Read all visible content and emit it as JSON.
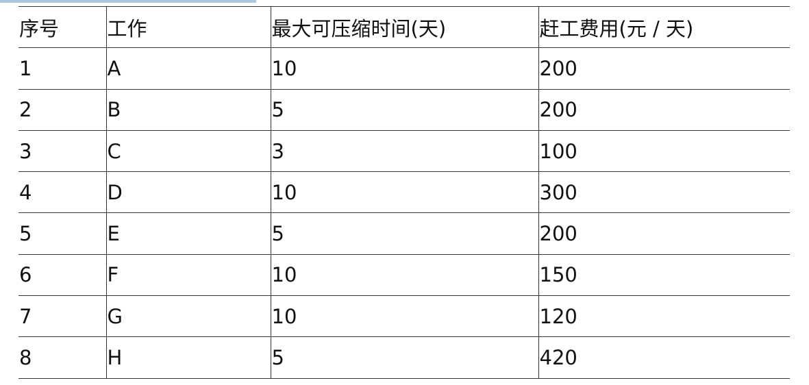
{
  "table": {
    "headers": [
      "序号",
      "工作",
      "最大可压缩时间(天)",
      "赶工费用(元 / 天)"
    ],
    "rows": [
      [
        "1",
        "A",
        "10",
        "200"
      ],
      [
        "2",
        "B",
        "5",
        "200"
      ],
      [
        "3",
        "C",
        "3",
        "100"
      ],
      [
        "4",
        "D",
        "10",
        "300"
      ],
      [
        "5",
        "E",
        "5",
        "200"
      ],
      [
        "6",
        "F",
        "10",
        "150"
      ],
      [
        "7",
        "G",
        "10",
        "120"
      ],
      [
        "8",
        "H",
        "5",
        "420"
      ]
    ]
  },
  "colors": {
    "top_bar": "#a9c8de",
    "border": "#333333"
  }
}
